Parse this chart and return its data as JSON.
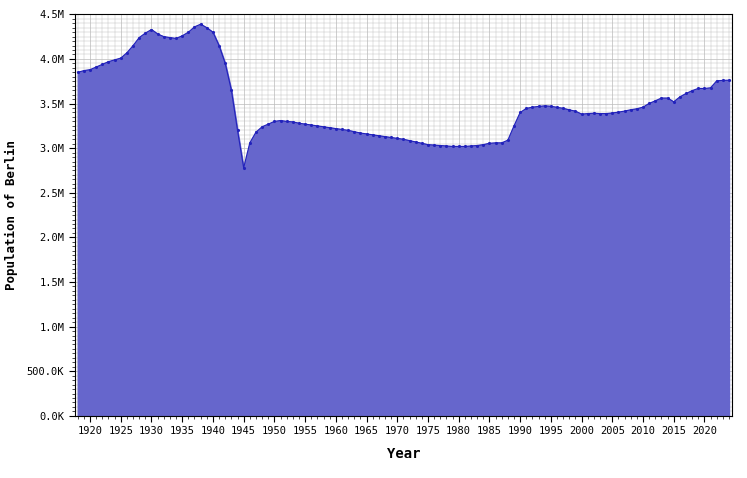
{
  "title": "",
  "xlabel": "Year",
  "ylabel": "Population of Berlin",
  "fill_color": "#6666cc",
  "line_color": "#2222bb",
  "background_color": "#ffffff",
  "plot_background": "#ffffff",
  "grid_color": "#bbbbbb",
  "xlim": [
    1917.5,
    2024.5
  ],
  "ylim": [
    0,
    4500000
  ],
  "yticks": [
    0,
    500000,
    1000000,
    1500000,
    2000000,
    2500000,
    3000000,
    3500000,
    4000000,
    4500000
  ],
  "ytick_labels": [
    "0.0K",
    "500.0K",
    "1.0M",
    "1.5M",
    "2.0M",
    "2.5M",
    "3.0M",
    "3.5M",
    "4.0M",
    "4.5M"
  ],
  "data": {
    "1918": 3850000,
    "1919": 3870000,
    "1920": 3880000,
    "1921": 3910000,
    "1922": 3940000,
    "1923": 3970000,
    "1924": 3990000,
    "1925": 4010000,
    "1926": 4070000,
    "1927": 4150000,
    "1928": 4240000,
    "1929": 4290000,
    "1930": 4330000,
    "1931": 4280000,
    "1932": 4250000,
    "1933": 4240000,
    "1934": 4230000,
    "1935": 4260000,
    "1936": 4300000,
    "1937": 4360000,
    "1938": 4390000,
    "1939": 4350000,
    "1940": 4300000,
    "1941": 4150000,
    "1942": 3950000,
    "1943": 3650000,
    "1944": 3200000,
    "1945": 2780000,
    "1946": 3060000,
    "1947": 3180000,
    "1948": 3240000,
    "1949": 3270000,
    "1950": 3300000,
    "1951": 3310000,
    "1952": 3300000,
    "1953": 3295000,
    "1954": 3280000,
    "1955": 3270000,
    "1956": 3260000,
    "1957": 3250000,
    "1958": 3240000,
    "1959": 3230000,
    "1960": 3220000,
    "1961": 3210000,
    "1962": 3200000,
    "1963": 3185000,
    "1964": 3170000,
    "1965": 3160000,
    "1966": 3150000,
    "1967": 3140000,
    "1968": 3130000,
    "1969": 3120000,
    "1970": 3110000,
    "1971": 3100000,
    "1972": 3085000,
    "1973": 3070000,
    "1974": 3055000,
    "1975": 3040000,
    "1976": 3035000,
    "1977": 3030000,
    "1978": 3025000,
    "1979": 3020000,
    "1980": 3020000,
    "1981": 3020000,
    "1982": 3025000,
    "1983": 3030000,
    "1984": 3040000,
    "1985": 3055000,
    "1986": 3060000,
    "1987": 3060000,
    "1988": 3090000,
    "1989": 3250000,
    "1990": 3400000,
    "1991": 3446000,
    "1992": 3460000,
    "1993": 3468000,
    "1994": 3475000,
    "1995": 3470000,
    "1996": 3458000,
    "1997": 3447000,
    "1998": 3430000,
    "1999": 3415000,
    "2000": 3382000,
    "2001": 3388000,
    "2002": 3392000,
    "2003": 3388000,
    "2004": 3388000,
    "2005": 3395000,
    "2006": 3404000,
    "2007": 3416000,
    "2008": 3431000,
    "2009": 3442000,
    "2010": 3460000,
    "2011": 3502000,
    "2012": 3531000,
    "2013": 3562000,
    "2014": 3562000,
    "2015": 3520000,
    "2016": 3575000,
    "2017": 3613000,
    "2018": 3645000,
    "2019": 3670000,
    "2020": 3669000,
    "2021": 3677000,
    "2022": 3755000,
    "2023": 3760000,
    "2024": 3762000
  }
}
